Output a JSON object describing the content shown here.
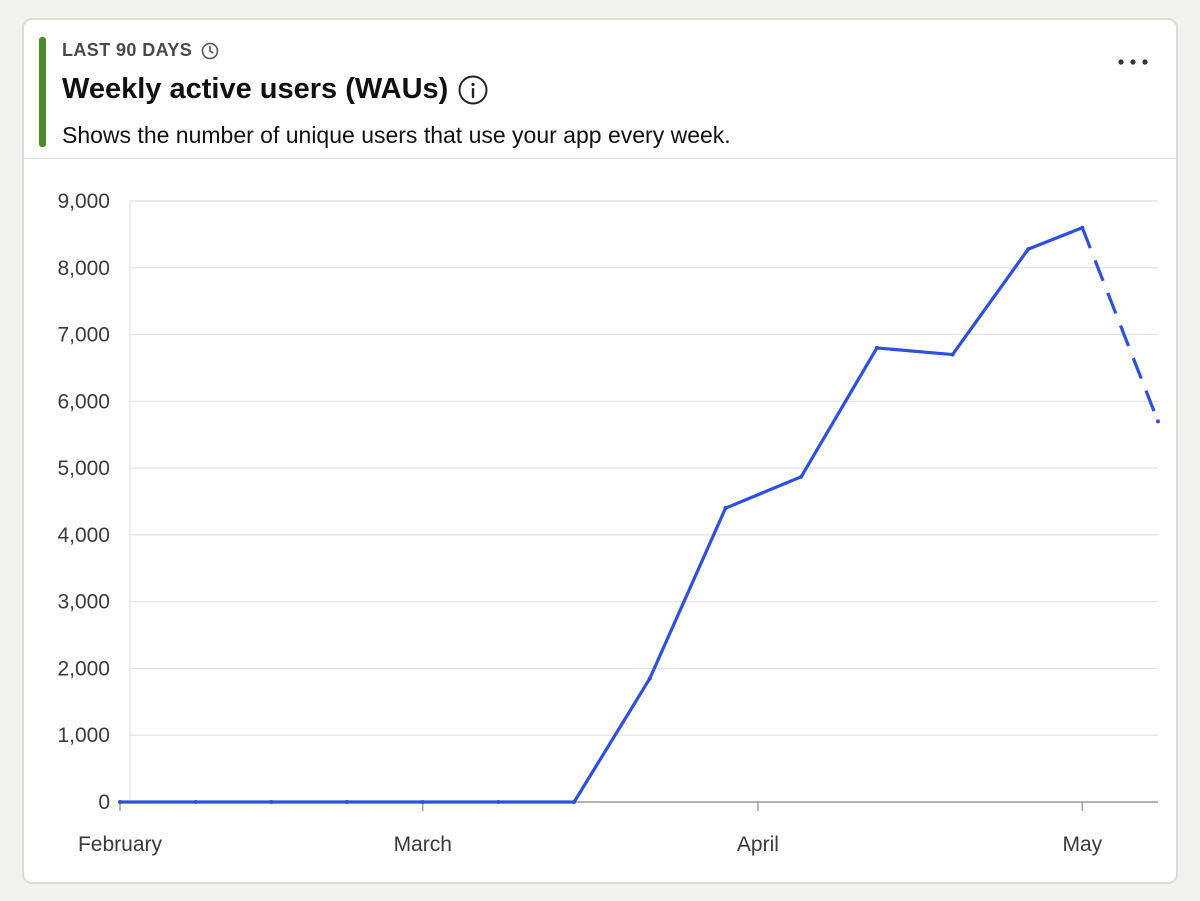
{
  "card": {
    "range_label": "LAST 90 DAYS",
    "title": "Weekly active users (WAUs)",
    "description": "Shows the number of unique users that use your app every week.",
    "accent_color": "#4a8a2c",
    "clock_icon": "clock-icon",
    "info_icon": "info-icon",
    "more_icon": "more-horizontal-icon"
  },
  "chart_data": {
    "type": "line",
    "title": "",
    "xlabel": "",
    "ylabel": "",
    "ylim": [
      0,
      9000
    ],
    "y_ticks": [
      0,
      1000,
      2000,
      3000,
      4000,
      5000,
      6000,
      7000,
      8000,
      9000
    ],
    "y_tick_labels": [
      "0",
      "1,000",
      "2,000",
      "3,000",
      "4,000",
      "5,000",
      "6,000",
      "7,000",
      "8,000",
      "9,000"
    ],
    "xlim": [
      "2025-02-01",
      "2025-05-08"
    ],
    "x_ticks": [
      "2025-02-01",
      "2025-03-01",
      "2025-04-01",
      "2025-05-01"
    ],
    "x_tick_labels": [
      "February",
      "March",
      "April",
      "May"
    ],
    "grid": "horizontal",
    "legend": "none",
    "series": [
      {
        "color": "#2f4fe0",
        "x": [
          "2025-02-01",
          "2025-02-08",
          "2025-02-15",
          "2025-02-22",
          "2025-03-01",
          "2025-03-08",
          "2025-03-15",
          "2025-03-22",
          "2025-03-29",
          "2025-04-05",
          "2025-04-12",
          "2025-04-19",
          "2025-04-26",
          "2025-05-01",
          "2025-05-08"
        ],
        "y": [
          0,
          0,
          0,
          0,
          0,
          0,
          0,
          1850,
          4400,
          4870,
          6800,
          6700,
          8280,
          8600,
          5700
        ],
        "line_style": [
          "solid",
          "solid",
          "solid",
          "solid",
          "solid",
          "solid",
          "solid",
          "solid",
          "solid",
          "solid",
          "solid",
          "solid",
          "solid",
          "dashed"
        ]
      }
    ]
  }
}
